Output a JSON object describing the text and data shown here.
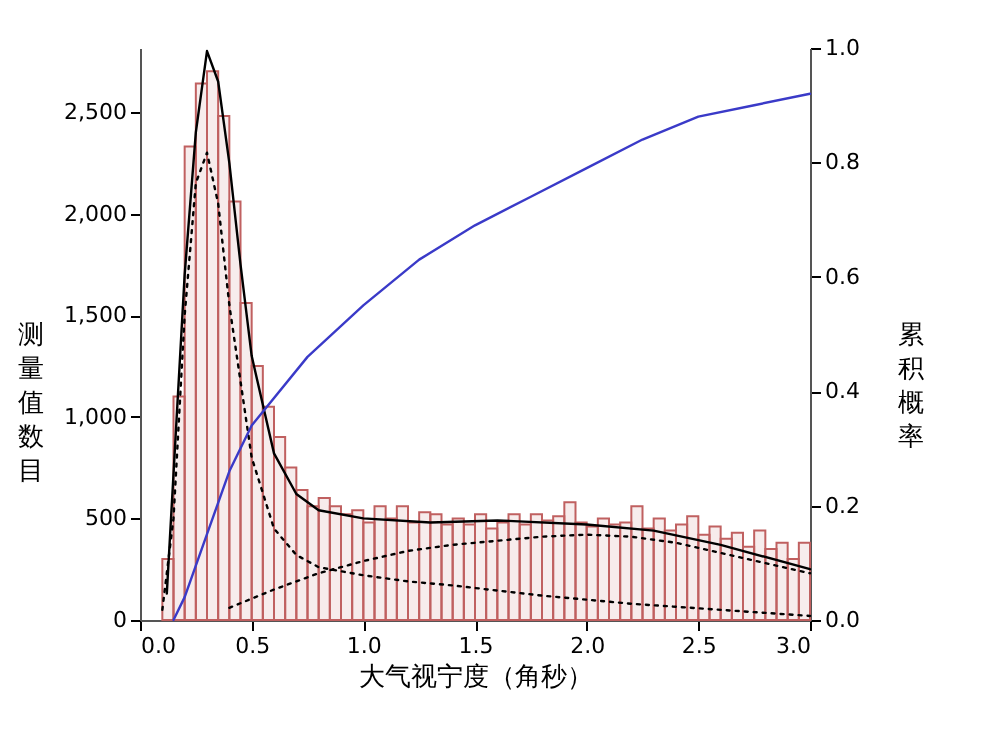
{
  "chart_data": {
    "type": "histogram",
    "xlabel": "大气视宁度（角秒）",
    "ylabel": "测量值数目",
    "y2label": "累积概率",
    "bins": [
      0.1,
      0.15,
      0.2,
      0.25,
      0.3,
      0.35,
      0.4,
      0.45,
      0.5,
      0.55,
      0.6,
      0.65,
      0.7,
      0.75,
      0.8,
      0.85,
      0.9,
      0.95,
      1.0,
      1.05,
      1.1,
      1.15,
      1.2,
      1.25,
      1.3,
      1.35,
      1.4,
      1.45,
      1.5,
      1.55,
      1.6,
      1.65,
      1.7,
      1.75,
      1.8,
      1.85,
      1.9,
      1.95,
      2.0,
      2.05,
      2.1,
      2.15,
      2.2,
      2.25,
      2.3,
      2.35,
      2.4,
      2.45,
      2.5,
      2.55,
      2.6,
      2.65,
      2.7,
      2.75,
      2.8,
      2.85,
      2.9,
      2.95,
      3.0
    ],
    "values": [
      300,
      1100,
      2330,
      2640,
      2700,
      2480,
      2060,
      1560,
      1250,
      1050,
      900,
      750,
      640,
      560,
      600,
      560,
      520,
      540,
      480,
      560,
      500,
      560,
      480,
      530,
      520,
      470,
      500,
      470,
      520,
      450,
      480,
      520,
      470,
      520,
      490,
      510,
      580,
      480,
      460,
      500,
      470,
      480,
      560,
      450,
      500,
      440,
      470,
      510,
      420,
      460,
      400,
      430,
      360,
      440,
      350,
      380,
      300,
      380
    ],
    "color": "#c06060",
    "series": [
      {
        "type": "line",
        "color": "#000000",
        "line_style": "solid",
        "x": [
          0.12,
          0.2,
          0.25,
          0.3,
          0.35,
          0.4,
          0.45,
          0.5,
          0.6,
          0.7,
          0.8,
          1.0,
          1.3,
          1.6,
          2.0,
          2.3,
          2.6,
          3.0
        ],
        "values": [
          130,
          1700,
          2400,
          2800,
          2650,
          2250,
          1750,
          1300,
          820,
          620,
          540,
          500,
          480,
          490,
          470,
          440,
          370,
          250
        ]
      },
      {
        "type": "line",
        "color": "#000000",
        "line_style": "dotted",
        "x": [
          0.1,
          0.15,
          0.2,
          0.25,
          0.3,
          0.35,
          0.4,
          0.5,
          0.6,
          0.7,
          0.8,
          1.0,
          1.2,
          1.4,
          1.8,
          2.2,
          2.6,
          3.0
        ],
        "values": [
          50,
          500,
          1500,
          2150,
          2300,
          2050,
          1550,
          800,
          450,
          320,
          260,
          220,
          190,
          170,
          120,
          80,
          50,
          20
        ]
      },
      {
        "type": "line",
        "color": "#000000",
        "line_style": "dotted",
        "x": [
          0.4,
          0.6,
          0.8,
          1.0,
          1.2,
          1.4,
          1.6,
          1.8,
          2.0,
          2.2,
          2.4,
          2.6,
          2.8,
          3.0
        ],
        "values": [
          60,
          150,
          230,
          290,
          340,
          370,
          390,
          410,
          420,
          410,
          380,
          330,
          280,
          230
        ]
      },
      {
        "type": "line",
        "axis": "y2",
        "color": "#3a3ac8",
        "line_style": "solid",
        "x": [
          0.15,
          0.2,
          0.3,
          0.4,
          0.5,
          0.75,
          1.0,
          1.25,
          1.5,
          1.75,
          2.0,
          2.25,
          2.5,
          2.75,
          3.0
        ],
        "values": [
          0,
          0.04,
          0.15,
          0.26,
          0.34,
          0.46,
          0.55,
          0.63,
          0.69,
          0.74,
          0.79,
          0.84,
          0.88,
          0.9,
          0.92
        ]
      }
    ],
    "xlim": [
      0,
      3
    ],
    "xticks": [
      {
        "value": 0,
        "label": "0.0"
      },
      {
        "value": 0.5,
        "label": "0.5"
      },
      {
        "value": 1,
        "label": "1.0"
      },
      {
        "value": 1.5,
        "label": "1.5"
      },
      {
        "value": 2,
        "label": "2.0"
      },
      {
        "value": 2.5,
        "label": "2.5"
      },
      {
        "value": 3,
        "label": "3.0"
      }
    ],
    "ylim": [
      0,
      2815
    ],
    "yticks": [
      0,
      500,
      {
        "value": 1000,
        "label": "1,000"
      },
      {
        "value": 1500,
        "label": "1,500"
      },
      {
        "value": 2000,
        "label": "2,000"
      },
      {
        "value": 2500,
        "label": "2,500"
      }
    ],
    "y2lim": [
      0,
      1
    ],
    "y2ticks": [
      {
        "value": 0,
        "label": "0.0"
      },
      {
        "value": 0.2,
        "label": "0.2"
      },
      {
        "value": 0.4,
        "label": "0.4"
      },
      {
        "value": 0.6,
        "label": "0.6"
      },
      {
        "value": 0.8,
        "label": "0.8"
      },
      {
        "value": 1,
        "label": "1.0"
      }
    ],
    "grid": false
  }
}
